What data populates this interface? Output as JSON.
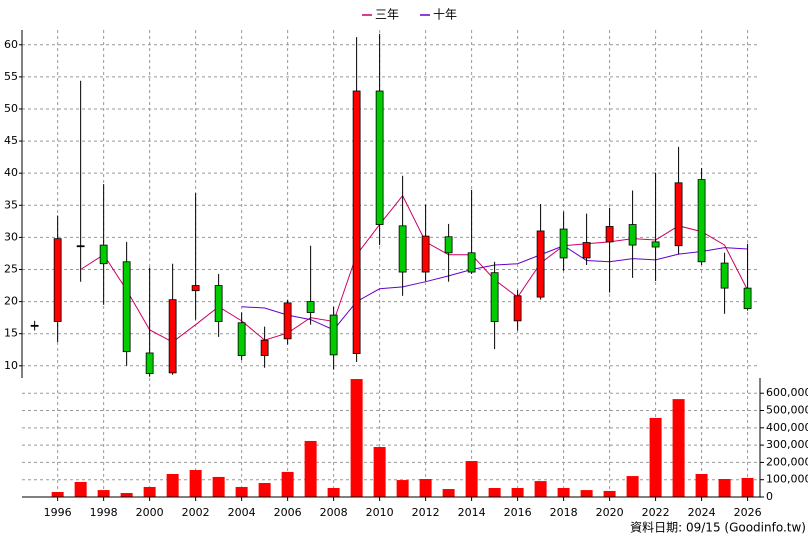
{
  "chart_data": {
    "type": "candlestick",
    "legend": "top",
    "grid": true,
    "x": [
      1995,
      1996,
      1997,
      1998,
      1999,
      2000,
      2001,
      2002,
      2003,
      2004,
      2005,
      2006,
      2007,
      2008,
      2009,
      2010,
      2011,
      2012,
      2013,
      2014,
      2015,
      2016,
      2017,
      2018,
      2019,
      2020,
      2021,
      2022,
      2023,
      2024,
      2025,
      2026
    ],
    "open": [
      16.3,
      16.9,
      28.7,
      28.8,
      26.2,
      12.0,
      8.9,
      21.7,
      22.5,
      16.7,
      11.6,
      14.2,
      20.0,
      17.9,
      11.9,
      52.8,
      31.8,
      24.6,
      30.1,
      27.6,
      24.5,
      17.0,
      20.7,
      31.3,
      26.8,
      29.3,
      32.0,
      29.3,
      28.7,
      39.0,
      26.0,
      22.1
    ],
    "high": [
      17.0,
      33.4,
      54.4,
      38.3,
      29.3,
      25.3,
      25.9,
      36.9,
      24.3,
      18.3,
      16.1,
      20.3,
      28.7,
      19.2,
      61.2,
      61.7,
      39.6,
      35.1,
      32.1,
      37.4,
      26.2,
      21.8,
      35.2,
      34.0,
      33.7,
      34.6,
      37.3,
      40.1,
      44.1,
      40.8,
      27.6,
      29.0
    ],
    "low": [
      15.5,
      13.7,
      23.1,
      19.5,
      10.0,
      8.3,
      8.6,
      17.2,
      14.5,
      10.9,
      9.7,
      13.3,
      16.4,
      9.4,
      10.6,
      28.8,
      20.9,
      23.2,
      23.1,
      24.3,
      12.6,
      15.5,
      20.3,
      24.8,
      25.7,
      21.4,
      23.7,
      23.2,
      27.4,
      25.7,
      18.1,
      18.6
    ],
    "close": [
      16.3,
      29.8,
      28.7,
      25.9,
      12.2,
      8.8,
      20.3,
      22.5,
      16.9,
      11.6,
      14.0,
      19.8,
      18.3,
      11.7,
      52.8,
      32.0,
      24.6,
      30.2,
      27.6,
      24.6,
      16.9,
      20.9,
      31.0,
      26.8,
      29.2,
      31.7,
      28.8,
      28.5,
      38.5,
      26.2,
      22.1,
      18.9
    ],
    "up_color": "#ff0000",
    "down_color": "#00cc00",
    "lines": [
      {
        "name": "三年",
        "color": "#cc0066",
        "values": [
          null,
          null,
          25.0,
          27.3,
          21.8,
          15.6,
          13.7,
          16.4,
          19.2,
          17.0,
          14.0,
          15.1,
          17.5,
          16.9,
          27.3,
          32.0,
          36.5,
          29.3,
          27.3,
          27.3,
          23.4,
          20.7,
          26.0,
          28.7,
          29.0,
          29.3,
          29.8,
          29.6,
          31.8,
          30.9,
          28.8,
          21.8
        ]
      },
      {
        "name": "十年",
        "color": "#6600cc",
        "values": [
          null,
          null,
          null,
          null,
          null,
          null,
          null,
          null,
          null,
          19.2,
          19.0,
          17.9,
          17.2,
          15.6,
          20.0,
          22.0,
          22.3,
          23.1,
          24.0,
          25.0,
          25.7,
          25.9,
          27.3,
          28.7,
          26.4,
          26.2,
          26.7,
          26.5,
          27.4,
          27.8,
          28.4,
          28.2
        ]
      }
    ],
    "volume": {
      "color": "#ff0000",
      "values": [
        null,
        29000,
        87000,
        40000,
        23000,
        58000,
        133000,
        156000,
        116000,
        58000,
        81000,
        145000,
        324000,
        52000,
        682000,
        289000,
        98000,
        104000,
        46000,
        208000,
        52000,
        52000,
        92000,
        52000,
        40000,
        35000,
        121000,
        457000,
        566000,
        133000,
        104000,
        110000
      ]
    },
    "xlim": [
      1994.45,
      2026.54
    ],
    "xticks": [
      1996,
      1998,
      2000,
      2002,
      2004,
      2006,
      2008,
      2010,
      2012,
      2014,
      2016,
      2018,
      2020,
      2022,
      2024,
      2026
    ],
    "ylim": [
      8.1,
      62.3
    ],
    "yticks": [
      10,
      15,
      20,
      25,
      30,
      35,
      40,
      45,
      50,
      55,
      60
    ],
    "y2lim": [
      0,
      688000
    ],
    "y2ticks": [
      0,
      {
        "value": 100000,
        "label": "100,000"
      },
      {
        "value": 200000,
        "label": "200,000"
      },
      {
        "value": 300000,
        "label": "300,000"
      },
      {
        "value": 400000,
        "label": "400,000"
      },
      {
        "value": 500000,
        "label": "500,000"
      },
      {
        "value": 600000,
        "label": "600,000"
      }
    ],
    "footnote": "資料日期: 09/15  (Goodinfo.tw)"
  }
}
